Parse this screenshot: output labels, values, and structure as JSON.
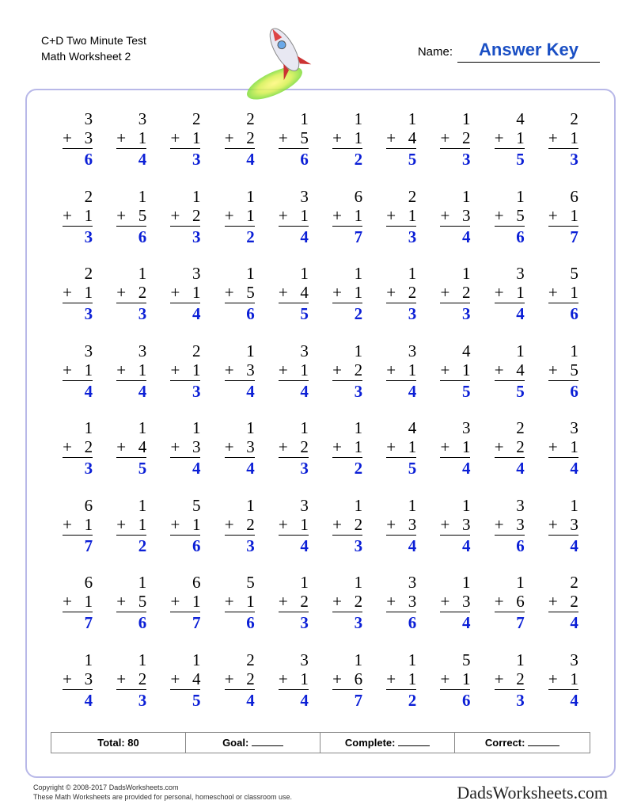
{
  "header": {
    "title_line1": "C+D Two Minute Test",
    "title_line2": "Math Worksheet 2",
    "name_label": "Name:",
    "answer_key": "Answer Key"
  },
  "styling": {
    "answer_color": "#0b1fd6",
    "frame_border_color": "#b8b8e8",
    "problem_font": "Georgia, serif",
    "problem_fontsize": 21,
    "grid_cols": 10,
    "grid_rows": 8,
    "operator": "+"
  },
  "problems": [
    [
      [
        3,
        3,
        6
      ],
      [
        3,
        1,
        4
      ],
      [
        2,
        1,
        3
      ],
      [
        2,
        2,
        4
      ],
      [
        1,
        5,
        6
      ],
      [
        1,
        1,
        2
      ],
      [
        1,
        4,
        5
      ],
      [
        1,
        2,
        3
      ],
      [
        4,
        1,
        5
      ],
      [
        2,
        1,
        3
      ]
    ],
    [
      [
        2,
        1,
        3
      ],
      [
        1,
        5,
        6
      ],
      [
        1,
        2,
        3
      ],
      [
        1,
        1,
        2
      ],
      [
        3,
        1,
        4
      ],
      [
        6,
        1,
        7
      ],
      [
        2,
        1,
        3
      ],
      [
        1,
        3,
        4
      ],
      [
        1,
        5,
        6
      ],
      [
        6,
        1,
        7
      ]
    ],
    [
      [
        2,
        1,
        3
      ],
      [
        1,
        2,
        3
      ],
      [
        3,
        1,
        4
      ],
      [
        1,
        5,
        6
      ],
      [
        1,
        4,
        5
      ],
      [
        1,
        1,
        2
      ],
      [
        1,
        2,
        3
      ],
      [
        1,
        2,
        3
      ],
      [
        3,
        1,
        4
      ],
      [
        5,
        1,
        6
      ]
    ],
    [
      [
        3,
        1,
        4
      ],
      [
        3,
        1,
        4
      ],
      [
        2,
        1,
        3
      ],
      [
        1,
        3,
        4
      ],
      [
        3,
        1,
        4
      ],
      [
        1,
        2,
        3
      ],
      [
        3,
        1,
        4
      ],
      [
        4,
        1,
        5
      ],
      [
        1,
        4,
        5
      ],
      [
        1,
        5,
        6
      ]
    ],
    [
      [
        1,
        2,
        3
      ],
      [
        1,
        4,
        5
      ],
      [
        1,
        3,
        4
      ],
      [
        1,
        3,
        4
      ],
      [
        1,
        2,
        3
      ],
      [
        1,
        1,
        2
      ],
      [
        4,
        1,
        5
      ],
      [
        3,
        1,
        4
      ],
      [
        2,
        2,
        4
      ],
      [
        3,
        1,
        4
      ]
    ],
    [
      [
        6,
        1,
        7
      ],
      [
        1,
        1,
        2
      ],
      [
        5,
        1,
        6
      ],
      [
        1,
        2,
        3
      ],
      [
        3,
        1,
        4
      ],
      [
        1,
        2,
        3
      ],
      [
        1,
        3,
        4
      ],
      [
        1,
        3,
        4
      ],
      [
        3,
        3,
        6
      ],
      [
        1,
        3,
        4
      ]
    ],
    [
      [
        6,
        1,
        7
      ],
      [
        1,
        5,
        6
      ],
      [
        6,
        1,
        7
      ],
      [
        5,
        1,
        6
      ],
      [
        1,
        2,
        3
      ],
      [
        1,
        2,
        3
      ],
      [
        3,
        3,
        6
      ],
      [
        1,
        3,
        4
      ],
      [
        1,
        6,
        7
      ],
      [
        2,
        2,
        4
      ]
    ],
    [
      [
        1,
        3,
        4
      ],
      [
        1,
        2,
        3
      ],
      [
        1,
        4,
        5
      ],
      [
        2,
        2,
        4
      ],
      [
        3,
        1,
        4
      ],
      [
        1,
        6,
        7
      ],
      [
        1,
        1,
        2
      ],
      [
        5,
        1,
        6
      ],
      [
        1,
        2,
        3
      ],
      [
        3,
        1,
        4
      ]
    ]
  ],
  "summary": {
    "total_label": "Total:",
    "total_value": "80",
    "goal_label": "Goal:",
    "complete_label": "Complete:",
    "correct_label": "Correct:"
  },
  "footer": {
    "copyright": "Copyright © 2008-2017 DadsWorksheets.com",
    "note": "These Math Worksheets are provided for personal, homeschool or classroom use.",
    "brand": "DadsWorksheets.com"
  }
}
